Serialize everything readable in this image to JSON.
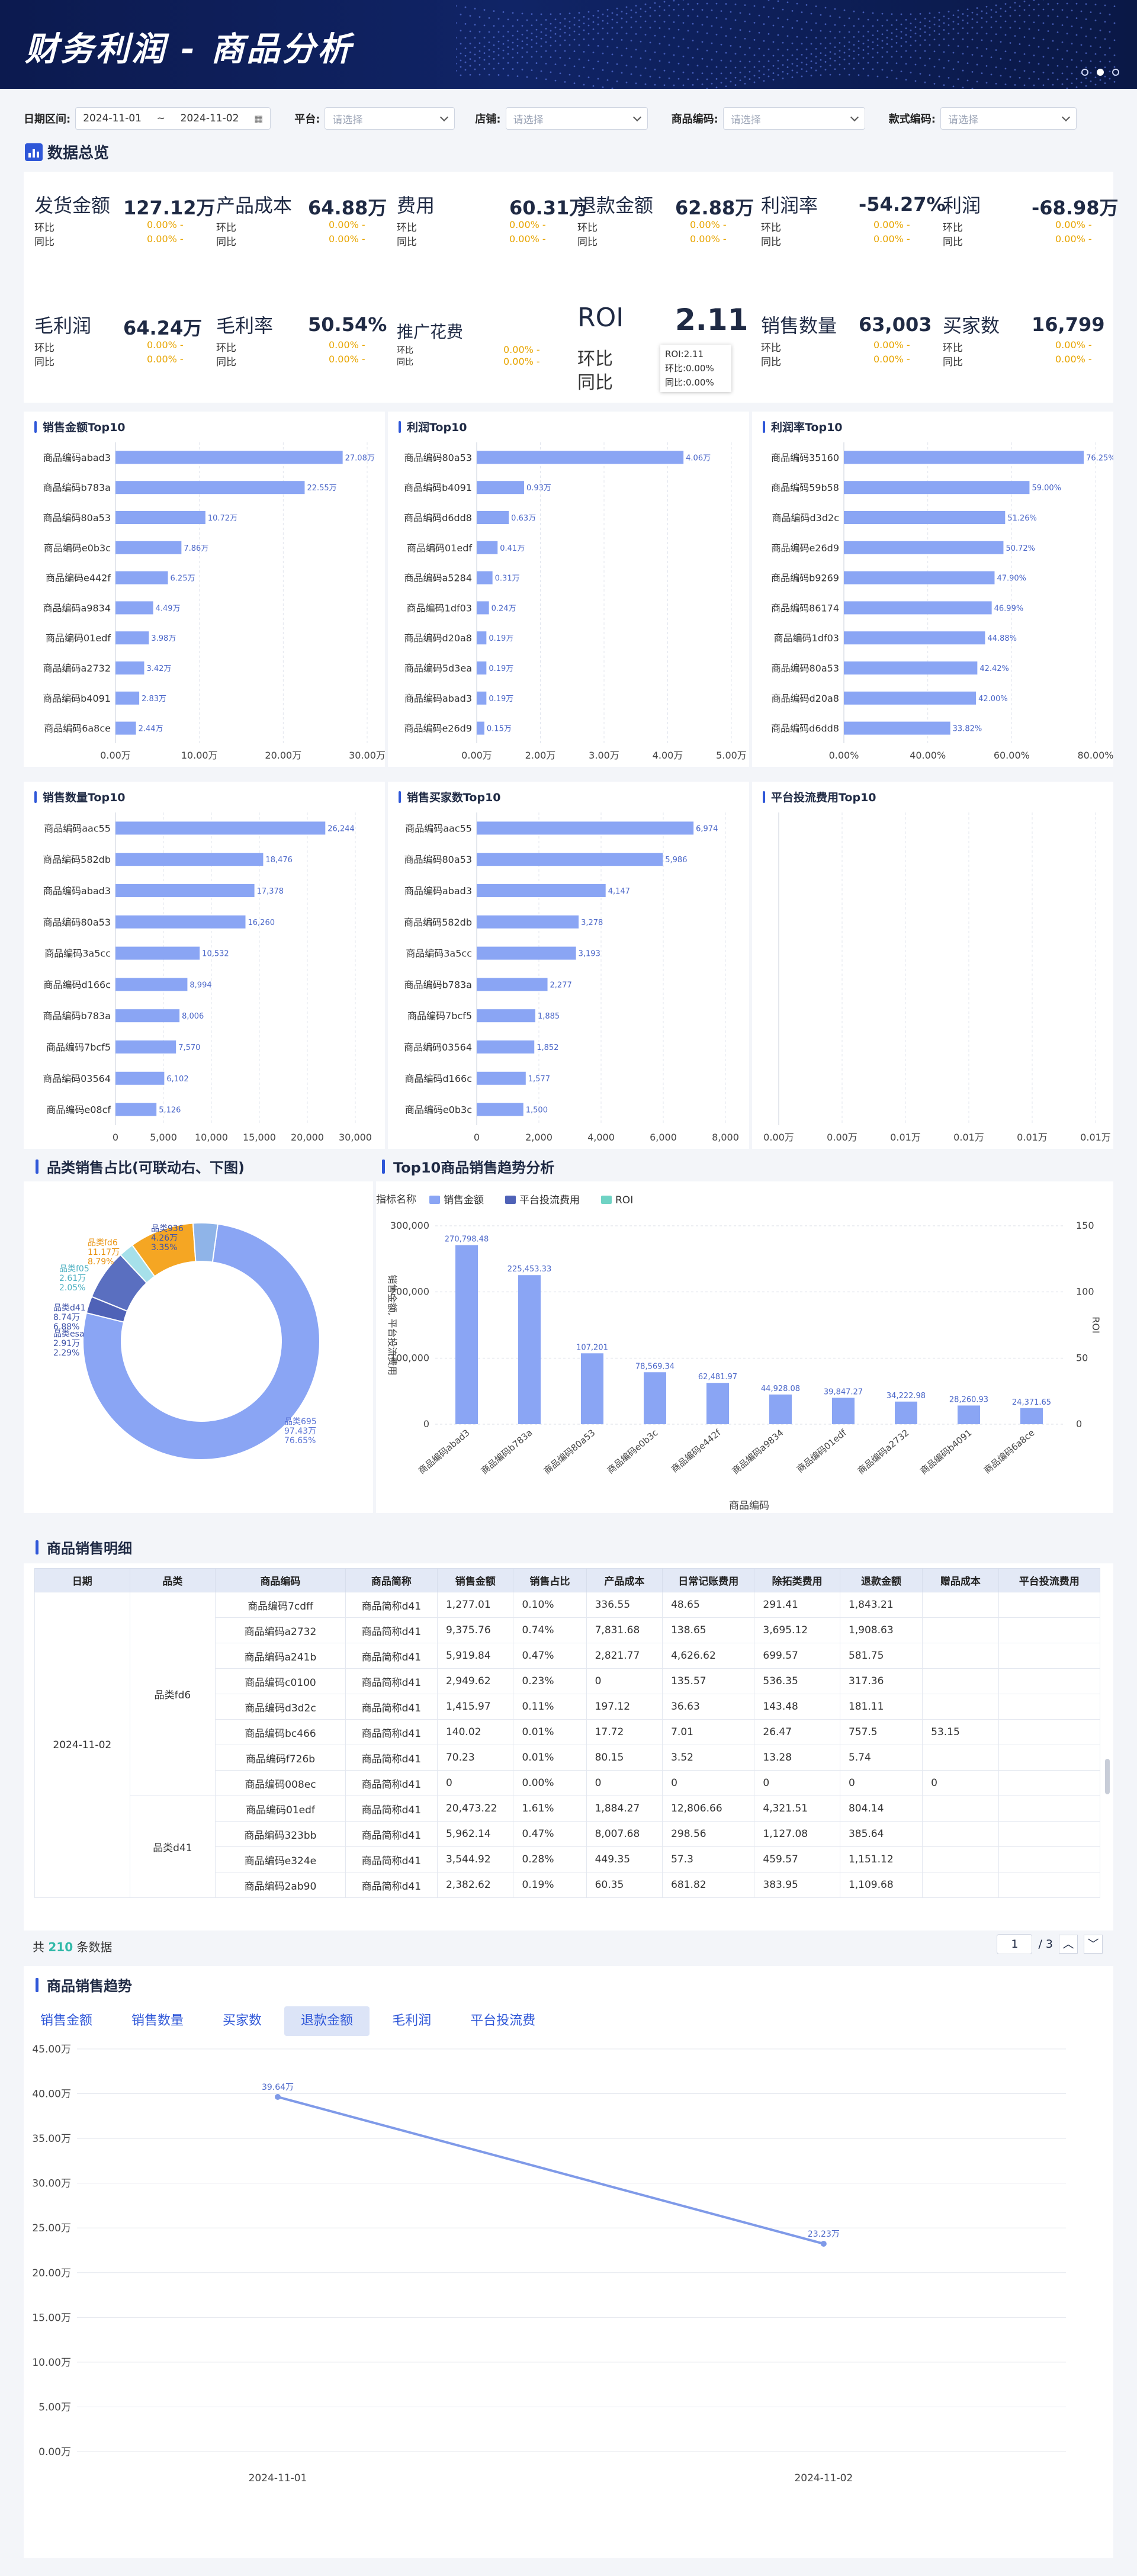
{
  "header": {
    "title": "财务利润 - 商品分析"
  },
  "filters": {
    "date_label": "日期区间:",
    "date_start": "2024-11-01",
    "date_sep": "~",
    "date_end": "2024-11-02",
    "platform_label": "平台:",
    "platform_ph": "请选择",
    "shop_label": "店铺:",
    "shop_ph": "请选择",
    "code_label": "商品编码:",
    "code_ph": "请选择",
    "style_label": "款式编码:",
    "style_ph": "请选择"
  },
  "overview": {
    "title": "数据总览",
    "huanbi": "环比",
    "tongbi": "同比",
    "pct": "0.00% -",
    "kpis": [
      {
        "label": "发货金额",
        "value": "127.12万"
      },
      {
        "label": "产品成本",
        "value": "64.88万"
      },
      {
        "label": "费用",
        "value": "60.31万"
      },
      {
        "label": "退款金额",
        "value": "62.88万"
      },
      {
        "label": "利润率",
        "value": "-54.27%"
      },
      {
        "label": "利润",
        "value": "-68.98万"
      },
      {
        "label": "毛利润",
        "value": "64.24万"
      },
      {
        "label": "毛利率",
        "value": "50.54%"
      },
      {
        "label": "推广花费",
        "value": ""
      },
      {
        "label": "ROI",
        "value": "2.11"
      },
      {
        "label": "销售数量",
        "value": "63,003"
      },
      {
        "label": "买家数",
        "value": "16,799"
      }
    ],
    "roi_tooltip": [
      "ROI:2.11",
      "环比:0.00%",
      "同比:0.00%"
    ]
  },
  "charts": {
    "sales_top10": {
      "title": "销售金额Top10",
      "cats": [
        "商品编码abad3",
        "商品编码b783a",
        "商品编码80a53",
        "商品编码e0b3c",
        "商品编码e442f",
        "商品编码a9834",
        "商品编码01edf",
        "商品编码a2732",
        "商品编码b4091",
        "商品编码6a8ce"
      ],
      "values": [
        27.08,
        22.55,
        10.72,
        7.86,
        6.25,
        4.49,
        3.98,
        3.42,
        2.83,
        2.44
      ],
      "labels": [
        "27.08万",
        "22.55万",
        "10.72万",
        "7.86万",
        "6.25万",
        "4.49万",
        "3.98万",
        "3.42万",
        "2.83万",
        "2.44万"
      ],
      "ticks": [
        "0.00万",
        "10.00万",
        "20.00万",
        "30.00万"
      ],
      "max": 30
    },
    "profit_top10": {
      "title": "利润Top10",
      "cats": [
        "商品编码80a53",
        "商品编码b4091",
        "商品编码d6dd8",
        "商品编码01edf",
        "商品编码a5284",
        "商品编码1df03",
        "商品编码d20a8",
        "商品编码5d3ea",
        "商品编码abad3",
        "商品编码e26d9"
      ],
      "values": [
        4.06,
        0.93,
        0.63,
        0.41,
        0.31,
        0.24,
        0.19,
        0.19,
        0.19,
        0.15
      ],
      "labels": [
        "4.06万",
        "0.93万",
        "0.63万",
        "0.41万",
        "0.31万",
        "0.24万",
        "0.19万",
        "0.19万",
        "0.19万",
        "0.15万"
      ],
      "ticks": [
        "0.00万",
        "2.00万",
        "3.00万",
        "4.00万",
        "5.00万"
      ],
      "max": 5
    },
    "margin_top10": {
      "title": "利润率Top10",
      "cats": [
        "商品编码35160",
        "商品编码59b58",
        "商品编码d3d2c",
        "商品编码e26d9",
        "商品编码b9269",
        "商品编码86174",
        "商品编码1df03",
        "商品编码80a53",
        "商品编码d20a8",
        "商品编码d6dd8"
      ],
      "values": [
        76.25,
        59.0,
        51.26,
        50.72,
        47.9,
        46.99,
        44.88,
        42.42,
        42.0,
        33.82
      ],
      "labels": [
        "76.25%",
        "59.00%",
        "51.26%",
        "50.72%",
        "47.90%",
        "46.99%",
        "44.88%",
        "42.42%",
        "42.00%",
        "33.82%"
      ],
      "ticks": [
        "0.00%",
        "40.00%",
        "60.00%",
        "80.00%"
      ],
      "max": 80
    },
    "qty_top10": {
      "title": "销售数量Top10",
      "cats": [
        "商品编码aac55",
        "商品编码582db",
        "商品编码abad3",
        "商品编码80a53",
        "商品编码3a5cc",
        "商品编码d166c",
        "商品编码b783a",
        "商品编码7bcf5",
        "商品编码03564",
        "商品编码e08cf"
      ],
      "values": [
        26244,
        18476,
        17378,
        16260,
        10532,
        8994,
        8006,
        7570,
        6102,
        5126
      ],
      "labels": [
        "26,244",
        "18,476",
        "17,378",
        "16,260",
        "10,532",
        "8,994",
        "8,006",
        "7,570",
        "6,102",
        "5,126"
      ],
      "ticks": [
        "0",
        "5,000",
        "10,000",
        "15,000",
        "20,000",
        "30,000"
      ],
      "max": 30000
    },
    "buyer_top10": {
      "title": "销售买家数Top10",
      "cats": [
        "商品编码aac55",
        "商品编码80a53",
        "商品编码abad3",
        "商品编码582db",
        "商品编码3a5cc",
        "商品编码b783a",
        "商品编码7bcf5",
        "商品编码03564",
        "商品编码d166c",
        "商品编码e0b3c"
      ],
      "values": [
        6974,
        5986,
        4147,
        3278,
        3193,
        2277,
        1885,
        1852,
        1577,
        1500
      ],
      "labels": [
        "6,974",
        "5,986",
        "4,147",
        "3,278",
        "3,193",
        "2,277",
        "1,885",
        "1,852",
        "1,577",
        "1,500"
      ],
      "ticks": [
        "0",
        "2,000",
        "4,000",
        "6,000",
        "8,000"
      ],
      "max": 8000
    },
    "ad_top10": {
      "title": "平台投流费用Top10",
      "ticks": [
        "0.00万",
        "0.00万",
        "0.01万",
        "0.01万",
        "0.01万",
        "0.01万"
      ]
    }
  },
  "pie": {
    "title": "品类销售占比(可联动右、下图)",
    "slices": [
      {
        "name": "品类695",
        "value": "97.43万",
        "pct": "76.65%",
        "share": 76.65,
        "color": "#8aa5f4"
      },
      {
        "name": "品类esa",
        "value": "2.91万",
        "pct": "2.29%",
        "share": 2.29,
        "color": "#4f62b7"
      },
      {
        "name": "品类d41",
        "value": "8.74万",
        "pct": "6.88%",
        "share": 6.88,
        "color": "#5a6fc0"
      },
      {
        "name": "品类f05",
        "value": "2.61万",
        "pct": "2.05%",
        "share": 2.05,
        "color": "#a6e0ea"
      },
      {
        "name": "品类fd6",
        "value": "11.17万",
        "pct": "8.79%",
        "share": 8.79,
        "color": "#f5a623"
      },
      {
        "name": "品类936",
        "value": "4.26万",
        "pct": "3.35%",
        "share": 3.35,
        "color": "#8fb4e8"
      }
    ]
  },
  "trend_top10": {
    "title": "Top10商品销售趋势分析",
    "legend_label": "指标名称",
    "legend": [
      "销售金额",
      "平台投流费用",
      "ROI"
    ],
    "y_label": "销售金额, 平台投流费用",
    "y2_label": "ROI",
    "x_label": "商品编码",
    "cats": [
      "商品编码abad3",
      "商品编码b783a",
      "商品编码80a53",
      "商品编码e0b3c",
      "商品编码e442f",
      "商品编码a9834",
      "商品编码01edf",
      "商品编码a2732",
      "商品编码b4091",
      "商品编码6a8ce"
    ],
    "values": [
      270798.48,
      225453.33,
      107201,
      78569.34,
      62481.97,
      44928.08,
      39847.27,
      34222.98,
      28260.93,
      24371.65
    ],
    "labels": [
      "270,798.48",
      "225,453.33",
      "107,201",
      "78,569.34",
      "62,481.97",
      "44,928.08",
      "39,847.27",
      "34,222.98",
      "28,260.93",
      "24,371.65"
    ],
    "yticks": [
      "300,000",
      "200,000",
      "100,000",
      "0"
    ],
    "y2ticks": [
      "150",
      "100",
      "50",
      "0"
    ]
  },
  "detail": {
    "title": "商品销售明细",
    "headers": [
      "日期",
      "品类",
      "商品编码",
      "商品简称",
      "销售金额",
      "销售占比",
      "产品成本",
      "日常记账费用",
      "除拓类费用",
      "退款金额",
      "赠品成本",
      "平台投流费用"
    ],
    "date": "2024-11-02",
    "cat1": "品类fd6",
    "cat2": "品类d41",
    "rows": [
      [
        "商品编码7cdff",
        "商品简称d41",
        "1,277.01",
        "0.10%",
        "336.55",
        "48.65",
        "291.41",
        "1,843.21",
        "",
        ""
      ],
      [
        "商品编码a2732",
        "商品简称d41",
        "9,375.76",
        "0.74%",
        "7,831.68",
        "138.65",
        "3,695.12",
        "1,908.63",
        "",
        ""
      ],
      [
        "商品编码a241b",
        "商品简称d41",
        "5,919.84",
        "0.47%",
        "2,821.77",
        "4,626.62",
        "699.57",
        "581.75",
        "",
        ""
      ],
      [
        "商品编码c0100",
        "商品简称d41",
        "2,949.62",
        "0.23%",
        "0",
        "135.57",
        "536.35",
        "317.36",
        "",
        ""
      ],
      [
        "商品编码d3d2c",
        "商品简称d41",
        "1,415.97",
        "0.11%",
        "197.12",
        "36.63",
        "143.48",
        "181.11",
        "",
        ""
      ],
      [
        "商品编码bc466",
        "商品简称d41",
        "140.02",
        "0.01%",
        "17.72",
        "7.01",
        "26.47",
        "757.5",
        "53.15",
        ""
      ],
      [
        "商品编码f726b",
        "商品简称d41",
        "70.23",
        "0.01%",
        "80.15",
        "3.52",
        "13.28",
        "5.74",
        "",
        ""
      ],
      [
        "商品编码008ec",
        "商品简称d41",
        "0",
        "0.00%",
        "0",
        "0",
        "0",
        "0",
        "0",
        ""
      ],
      [
        "商品编码01edf",
        "商品简称d41",
        "20,473.22",
        "1.61%",
        "1,884.27",
        "12,806.66",
        "4,321.51",
        "804.14",
        "",
        ""
      ],
      [
        "商品编码323bb",
        "商品简称d41",
        "5,962.14",
        "0.47%",
        "8,007.68",
        "298.56",
        "1,127.08",
        "385.64",
        "",
        ""
      ],
      [
        "商品编码e324e",
        "商品简称d41",
        "3,544.92",
        "0.28%",
        "449.35",
        "57.3",
        "459.57",
        "1,151.12",
        "",
        ""
      ],
      [
        "商品编码2ab90",
        "商品简称d41",
        "2,382.62",
        "0.19%",
        "60.35",
        "681.82",
        "383.95",
        "1,109.68",
        "",
        ""
      ]
    ],
    "total_prefix": "共",
    "total_count": "210",
    "total_suffix": "条数据",
    "page_current": "1",
    "page_total": "/ 3"
  },
  "sales_trend": {
    "title": "商品销售趋势",
    "tabs": [
      "销售金额",
      "销售数量",
      "买家数",
      "退款金额",
      "毛利润",
      "平台投流费"
    ],
    "active_tab": 3,
    "x": [
      "2024-11-01",
      "2024-11-02"
    ],
    "values": [
      39.64,
      23.23
    ],
    "labels": [
      "39.64万",
      "23.23万"
    ],
    "yticks": [
      "45.00万",
      "40.00万",
      "35.00万",
      "30.00万",
      "25.00万",
      "20.00万",
      "15.00万",
      "10.00万",
      "5.00万",
      "0.00万"
    ]
  }
}
